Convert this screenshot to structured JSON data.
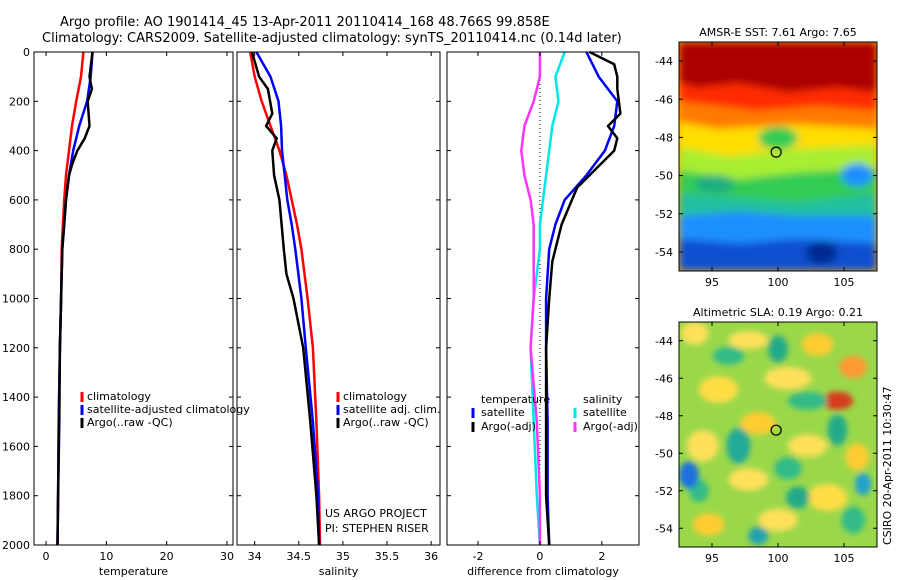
{
  "header": {
    "line1": "Argo profile: AO 1901414_45 13-Apr-2011 20110414_168 48.766S 99.858E",
    "line2": "Climatology: CARS2009. Satellite-adjusted climatology: synTS_20110414.nc (0.14d later)"
  },
  "credits": {
    "project": "US ARGO PROJECT",
    "pi": "PI: STEPHEN RISER"
  },
  "side_label": "CSIRO 20-Apr-2011 10:30:47",
  "colors": {
    "red": "#ff0000",
    "blue": "#0000ff",
    "black": "#000000",
    "cyan": "#00e5e5",
    "magenta": "#ff33ff"
  },
  "chart_data": [
    {
      "type": "line",
      "xlabel": "temperature",
      "xlim": [
        -2,
        31
      ],
      "xticks": [
        "0",
        "10",
        "20",
        "30"
      ],
      "ylim": [
        2000,
        0
      ],
      "yticks": [
        "0",
        "200",
        "400",
        "600",
        "800",
        "1000",
        "1200",
        "1400",
        "1600",
        "1800",
        "2000"
      ],
      "legend": [
        "climatology",
        "satellite-adjusted climatology",
        "Argo(..raw -QC)"
      ],
      "series": [
        {
          "name": "climatology",
          "color": "red",
          "x": [
            6.2,
            5.8,
            5.0,
            4.3,
            3.8,
            3.3,
            3.0,
            2.8,
            2.6,
            2.5,
            2.3,
            2.1,
            2.0,
            1.9
          ],
          "y": [
            0,
            100,
            200,
            300,
            400,
            500,
            600,
            700,
            800,
            1000,
            1200,
            1500,
            1800,
            2000
          ]
        },
        {
          "name": "satellite-adjusted climatology",
          "color": "blue",
          "x": [
            7.7,
            7.4,
            6.8,
            5.5,
            4.5,
            3.8,
            3.3,
            3.0,
            2.7,
            2.5,
            2.3,
            2.1,
            2.0,
            1.9
          ],
          "y": [
            0,
            100,
            200,
            300,
            400,
            500,
            600,
            700,
            800,
            1000,
            1200,
            1500,
            1800,
            2000
          ]
        },
        {
          "name": "Argo(..raw -QC)",
          "color": "black",
          "x": [
            7.7,
            7.2,
            7.6,
            6.9,
            7.2,
            6.4,
            5.2,
            4.4,
            3.8,
            3.3,
            3.0,
            2.7,
            2.5,
            2.3,
            2.2,
            2.0,
            1.9
          ],
          "y": [
            0,
            100,
            150,
            200,
            300,
            350,
            400,
            450,
            500,
            600,
            700,
            800,
            1000,
            1200,
            1500,
            1800,
            2000
          ]
        }
      ]
    },
    {
      "type": "line",
      "xlabel": "salinity",
      "xlim": [
        33.8,
        36.1
      ],
      "xticks": [
        "34",
        "34.5",
        "35",
        "35.5",
        "36"
      ],
      "ylim": [
        2000,
        0
      ],
      "legend": [
        "climatology",
        "satellite adj. clim.",
        "Argo(..raw -QC)"
      ],
      "series": [
        {
          "name": "climatology",
          "color": "red",
          "x": [
            33.95,
            34.0,
            34.08,
            34.18,
            34.28,
            34.36,
            34.42,
            34.48,
            34.53,
            34.6,
            34.66,
            34.7,
            34.73,
            34.74
          ],
          "y": [
            0,
            100,
            200,
            300,
            400,
            500,
            600,
            700,
            800,
            1000,
            1200,
            1500,
            1800,
            2000
          ]
        },
        {
          "name": "satellite adj. clim.",
          "color": "blue",
          "x": [
            34.02,
            34.18,
            34.27,
            34.3,
            34.31,
            34.34,
            34.37,
            34.42,
            34.46,
            34.53,
            34.58,
            34.66,
            34.72,
            34.73
          ],
          "y": [
            0,
            100,
            200,
            300,
            400,
            500,
            600,
            700,
            800,
            1000,
            1200,
            1500,
            1800,
            2000
          ]
        },
        {
          "name": "Argo(..raw -QC)",
          "color": "black",
          "x": [
            33.97,
            34.05,
            34.15,
            34.2,
            34.13,
            34.25,
            34.2,
            34.22,
            34.28,
            34.33,
            34.36,
            34.44,
            34.55,
            34.63,
            34.7,
            34.73
          ],
          "y": [
            0,
            100,
            150,
            250,
            300,
            350,
            400,
            500,
            600,
            800,
            900,
            1000,
            1200,
            1500,
            1800,
            2000
          ]
        }
      ]
    },
    {
      "type": "line",
      "xlabel": "difference from climatology",
      "xlim": [
        -3,
        3.2
      ],
      "xticks": [
        "-2",
        "0",
        "2"
      ],
      "ylim": [
        2000,
        0
      ],
      "legend": [
        "temperature",
        "satellite",
        "Argo(-adj)",
        "salinity",
        "satellite",
        "Argo(-adj)"
      ],
      "series": [
        {
          "name": "temperature satellite",
          "color": "blue",
          "x": [
            1.5,
            1.9,
            2.5,
            2.4,
            2.1,
            1.5,
            0.8,
            0.5,
            0.3,
            0.2,
            0.2,
            0.25,
            0.25,
            0.3
          ],
          "y": [
            0,
            100,
            200,
            300,
            400,
            500,
            600,
            700,
            800,
            1000,
            1200,
            1500,
            1800,
            2000
          ]
        },
        {
          "name": "temperature Argo(-adj)",
          "color": "black",
          "x": [
            1.6,
            2.4,
            2.5,
            2.5,
            2.6,
            2.2,
            2.5,
            2.4,
            1.2,
            0.7,
            0.4,
            0.3,
            0.2,
            0.2,
            0.2,
            0.3
          ],
          "y": [
            0,
            50,
            100,
            150,
            250,
            300,
            350,
            400,
            550,
            700,
            850,
            1000,
            1200,
            1500,
            1800,
            2000
          ]
        },
        {
          "name": "salinity satellite",
          "color": "cyan",
          "x": [
            0.8,
            0.5,
            0.6,
            0.4,
            0.3,
            0.2,
            0.1,
            0.0,
            0.0,
            -0.2,
            -0.3,
            -0.2,
            -0.1,
            0.0
          ],
          "y": [
            0,
            100,
            200,
            300,
            400,
            500,
            600,
            700,
            800,
            1000,
            1200,
            1500,
            1800,
            2000
          ]
        },
        {
          "name": "salinity Argo(-adj)",
          "color": "magenta",
          "x": [
            0.0,
            0.0,
            -0.2,
            -0.5,
            -0.6,
            -0.5,
            -0.3,
            -0.2,
            -0.2,
            -0.2,
            -0.3,
            -0.1,
            0.0,
            0.0
          ],
          "y": [
            0,
            100,
            200,
            300,
            400,
            500,
            600,
            700,
            800,
            1000,
            1200,
            1500,
            1800,
            2000
          ]
        }
      ]
    },
    {
      "type": "heatmap",
      "title": "AMSR-E SST: 7.61 Argo: 7.65",
      "xlim": [
        92.5,
        107.5
      ],
      "ylim": [
        -55,
        -43
      ],
      "xticks": [
        "95",
        "100",
        "105"
      ],
      "yticks": [
        "-44",
        "-46",
        "-48",
        "-50",
        "-52",
        "-54"
      ],
      "marker": {
        "x": 99.86,
        "y": -48.77
      }
    },
    {
      "type": "heatmap",
      "title": "Altimetric SLA: 0.19 Argo: 0.21",
      "xlim": [
        92.5,
        107.5
      ],
      "ylim": [
        -55,
        -43
      ],
      "xticks": [
        "95",
        "100",
        "105"
      ],
      "yticks": [
        "-44",
        "-46",
        "-48",
        "-50",
        "-52",
        "-54"
      ],
      "marker": {
        "x": 99.86,
        "y": -48.77
      }
    }
  ]
}
